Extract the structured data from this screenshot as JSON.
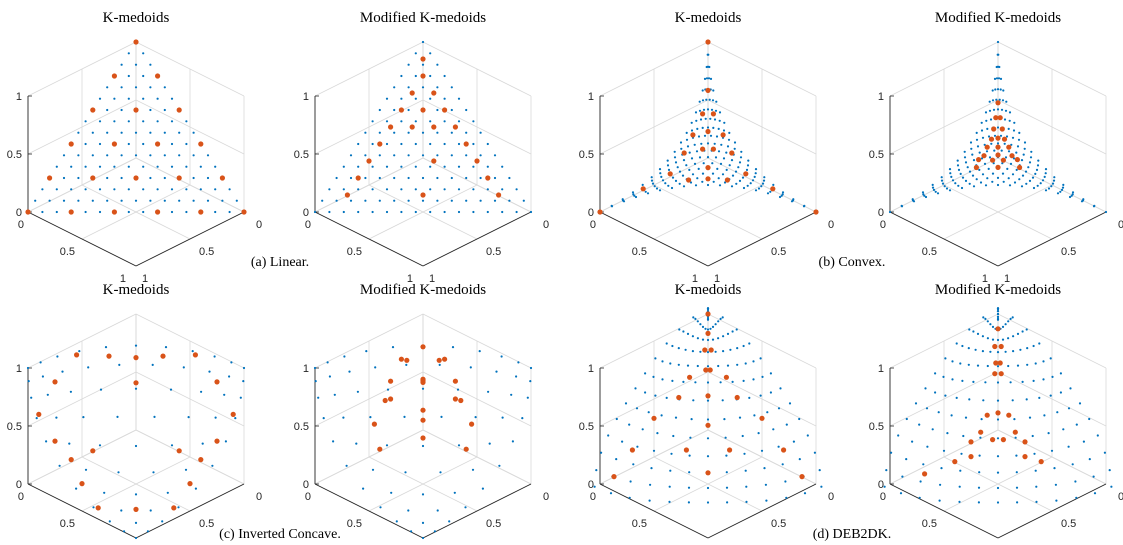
{
  "captions": [
    "(a) Linear.",
    "(b) Convex.",
    "(c) Inverted Concave.",
    "(d) DEB2DK."
  ],
  "colors": {
    "blue_points": "#0072BD",
    "orange_points": "#D95319",
    "axis": "#262626",
    "grid": "#d9d9d9"
  },
  "chart_data": [
    {
      "type": "scatter",
      "subfigure": "(a) Linear.",
      "title": "K-medoids",
      "shape": "linear",
      "z_ticks": [
        "0",
        "0.5",
        "1"
      ],
      "x_ticks": [
        "0",
        "0.5",
        "1"
      ],
      "y_ticks": [
        "1",
        "0.5",
        "0"
      ],
      "xlim": [
        0,
        1
      ],
      "ylim": [
        0,
        1
      ],
      "zlim": [
        0,
        1
      ],
      "grid": true,
      "series": [
        {
          "points": [
            [
              0,
              0,
              1
            ],
            [
              0.2,
              0,
              0.8
            ],
            [
              0,
              0.2,
              0.8
            ],
            [
              0.4,
              0,
              0.6
            ],
            [
              0.2,
              0.2,
              0.6
            ],
            [
              0,
              0.4,
              0.6
            ],
            [
              0.6,
              0,
              0.4
            ],
            [
              0.4,
              0.2,
              0.4
            ],
            [
              0.2,
              0.4,
              0.4
            ],
            [
              0,
              0.6,
              0.4
            ],
            [
              0.8,
              0,
              0.2
            ],
            [
              0.6,
              0.2,
              0.2
            ],
            [
              0.4,
              0.4,
              0.2
            ],
            [
              0.2,
              0.6,
              0.2
            ],
            [
              0,
              0.8,
              0.2
            ],
            [
              1,
              0,
              0
            ],
            [
              0.8,
              0.2,
              0
            ],
            [
              0.6,
              0.4,
              0
            ],
            [
              0.4,
              0.6,
              0
            ],
            [
              0.2,
              0.8,
              0
            ],
            [
              0,
              1,
              0
            ]
          ]
        }
      ]
    },
    {
      "type": "scatter",
      "subfigure": "(a) Linear.",
      "title": "Modified K-medoids",
      "shape": "linear",
      "z_ticks": [
        "0",
        "0.5",
        "1"
      ],
      "x_ticks": [
        "0",
        "0.5",
        "1"
      ],
      "y_ticks": [
        "1",
        "0.5",
        "0"
      ],
      "xlim": [
        0,
        1
      ],
      "ylim": [
        0,
        1
      ],
      "zlim": [
        0,
        1
      ],
      "grid": true,
      "series": [
        {
          "points": [
            [
              0.05,
              0.05,
              0.9
            ],
            [
              0.1,
              0.1,
              0.8
            ],
            [
              0.2,
              0.1,
              0.7
            ],
            [
              0.1,
              0.2,
              0.7
            ],
            [
              0.3,
              0.1,
              0.6
            ],
            [
              0.2,
              0.2,
              0.6
            ],
            [
              0.1,
              0.3,
              0.6
            ],
            [
              0.4,
              0.1,
              0.5
            ],
            [
              0.3,
              0.2,
              0.5
            ],
            [
              0.2,
              0.3,
              0.5
            ],
            [
              0.1,
              0.4,
              0.5
            ],
            [
              0.5,
              0.1,
              0.4
            ],
            [
              0.1,
              0.5,
              0.4
            ],
            [
              0.6,
              0.1,
              0.3
            ],
            [
              0.3,
              0.4,
              0.3
            ],
            [
              0.1,
              0.6,
              0.3
            ],
            [
              0.7,
              0.1,
              0.2
            ],
            [
              0.1,
              0.7,
              0.2
            ],
            [
              0.8,
              0.1,
              0.1
            ],
            [
              0.45,
              0.45,
              0.1
            ],
            [
              0.1,
              0.8,
              0.1
            ]
          ]
        }
      ]
    },
    {
      "type": "scatter",
      "subfigure": "(b) Convex.",
      "title": "K-medoids",
      "shape": "convex",
      "z_ticks": [
        "0",
        "0.5",
        "1"
      ],
      "x_ticks": [
        "0",
        "0.5",
        "1"
      ],
      "y_ticks": [
        "1",
        "0.5",
        "0"
      ],
      "xlim": [
        0,
        1
      ],
      "ylim": [
        0,
        1
      ],
      "zlim": [
        0,
        1
      ],
      "grid": true,
      "series": [
        {
          "points": [
            [
              0,
              0,
              1
            ],
            [
              1,
              0,
              0
            ],
            [
              0,
              1,
              0
            ],
            [
              0.04,
              0.04,
              0.62
            ],
            [
              0.1,
              0.05,
              0.45
            ],
            [
              0.05,
              0.1,
              0.45
            ],
            [
              0.2,
              0.06,
              0.32
            ],
            [
              0.12,
              0.12,
              0.34
            ],
            [
              0.06,
              0.2,
              0.32
            ],
            [
              0.3,
              0.08,
              0.22
            ],
            [
              0.2,
              0.15,
              0.24
            ],
            [
              0.15,
              0.2,
              0.24
            ],
            [
              0.08,
              0.3,
              0.22
            ],
            [
              0.45,
              0.1,
              0.12
            ],
            [
              0.25,
              0.25,
              0.15
            ],
            [
              0.1,
              0.45,
              0.12
            ],
            [
              0.65,
              0.05,
              0.06
            ],
            [
              0.38,
              0.2,
              0.08
            ],
            [
              0.2,
              0.38,
              0.08
            ],
            [
              0.05,
              0.65,
              0.06
            ],
            [
              0.3,
              0.3,
              0.1
            ]
          ]
        }
      ]
    },
    {
      "type": "scatter",
      "subfigure": "(b) Convex.",
      "title": "Modified K-medoids",
      "shape": "convex",
      "z_ticks": [
        "0",
        "0.5",
        "1"
      ],
      "x_ticks": [
        "0",
        "0.5",
        "1"
      ],
      "y_ticks": [
        "1",
        "0.5",
        "0"
      ],
      "xlim": [
        0,
        1
      ],
      "ylim": [
        0,
        1
      ],
      "zlim": [
        0,
        1
      ],
      "grid": true,
      "series": [
        {
          "points": [
            [
              0.08,
              0.08,
              0.55
            ],
            [
              0.12,
              0.1,
              0.45
            ],
            [
              0.1,
              0.12,
              0.45
            ],
            [
              0.16,
              0.12,
              0.38
            ],
            [
              0.12,
              0.16,
              0.38
            ],
            [
              0.2,
              0.14,
              0.32
            ],
            [
              0.14,
              0.2,
              0.32
            ],
            [
              0.17,
              0.17,
              0.33
            ],
            [
              0.24,
              0.14,
              0.27
            ],
            [
              0.14,
              0.24,
              0.27
            ],
            [
              0.2,
              0.2,
              0.28
            ],
            [
              0.28,
              0.15,
              0.22
            ],
            [
              0.15,
              0.28,
              0.22
            ],
            [
              0.23,
              0.23,
              0.24
            ],
            [
              0.32,
              0.14,
              0.2
            ],
            [
              0.14,
              0.32,
              0.2
            ],
            [
              0.26,
              0.21,
              0.2
            ],
            [
              0.21,
              0.26,
              0.2
            ],
            [
              0.36,
              0.16,
              0.16
            ],
            [
              0.16,
              0.36,
              0.16
            ],
            [
              0.28,
              0.28,
              0.18
            ]
          ]
        }
      ]
    },
    {
      "type": "scatter",
      "subfigure": "(c) Inverted Concave.",
      "title": "K-medoids",
      "shape": "inverted_concave",
      "z_ticks": [
        "0",
        "0.5",
        "1"
      ],
      "x_ticks": [
        "0",
        "0.5",
        "1"
      ],
      "y_ticks": [
        "1",
        "0.5",
        "0"
      ],
      "xlim": [
        0,
        1
      ],
      "ylim": [
        0,
        1
      ],
      "zlim": [
        0,
        1
      ],
      "grid": true,
      "series": [
        {
          "points": [
            [
              0.95,
              0.2,
              0.95
            ],
            [
              0.2,
              0.95,
              0.95
            ],
            [
              0.95,
              0.95,
              0.2
            ],
            [
              0.6,
              0.05,
              0.95
            ],
            [
              0.05,
              0.6,
              0.95
            ],
            [
              0.95,
              0.05,
              0.6
            ],
            [
              0.95,
              0.6,
              0.05
            ],
            [
              0.05,
              0.95,
              0.6
            ],
            [
              0.6,
              0.95,
              0.05
            ],
            [
              0.35,
              0.35,
              0.95
            ],
            [
              0.95,
              0.35,
              0.35
            ],
            [
              0.35,
              0.95,
              0.35
            ],
            [
              0.05,
              0.3,
              0.8
            ],
            [
              0.3,
              0.05,
              0.8
            ],
            [
              0.8,
              0.05,
              0.3
            ],
            [
              0.8,
              0.3,
              0.05
            ],
            [
              0.05,
              0.8,
              0.3
            ],
            [
              0.3,
              0.8,
              0.05
            ],
            [
              0.1,
              0.1,
              0.5
            ],
            [
              0.5,
              0.1,
              0.1
            ],
            [
              0.1,
              0.5,
              0.1
            ]
          ]
        }
      ]
    },
    {
      "type": "scatter",
      "subfigure": "(c) Inverted Concave.",
      "title": "Modified K-medoids",
      "shape": "inverted_concave",
      "z_ticks": [
        "0",
        "0.5",
        "1"
      ],
      "x_ticks": [
        "0",
        "0.5",
        "1"
      ],
      "y_ticks": [
        "1",
        "0.5",
        "0"
      ],
      "xlim": [
        0,
        1
      ],
      "ylim": [
        0,
        1
      ],
      "zlim": [
        0,
        1
      ],
      "grid": true,
      "series": [
        {
          "points": [
            [
              0.25,
              0.25,
              0.95
            ],
            [
              0.45,
              0.3,
              0.95
            ],
            [
              0.3,
              0.45,
              0.95
            ],
            [
              0.55,
              0.55,
              0.95
            ],
            [
              0.25,
              0.05,
              0.75
            ],
            [
              0.05,
              0.25,
              0.75
            ],
            [
              0.45,
              0.15,
              0.7
            ],
            [
              0.15,
              0.45,
              0.7
            ],
            [
              0.35,
              0.35,
              0.75
            ],
            [
              0.6,
              0.25,
              0.65
            ],
            [
              0.25,
              0.6,
              0.65
            ],
            [
              0.15,
              0.15,
              0.55
            ],
            [
              0.4,
              0.1,
              0.5
            ],
            [
              0.1,
              0.4,
              0.5
            ],
            [
              0.5,
              0.5,
              0.55
            ],
            [
              0.3,
              0.3,
              0.45
            ],
            [
              0.6,
              0.15,
              0.4
            ],
            [
              0.15,
              0.6,
              0.4
            ],
            [
              0.45,
              0.45,
              0.35
            ],
            [
              0.7,
              0.3,
              0.3
            ],
            [
              0.3,
              0.7,
              0.3
            ]
          ]
        }
      ]
    },
    {
      "type": "scatter",
      "subfigure": "(d) DEB2DK.",
      "title": "K-medoids",
      "shape": "deb2dk",
      "z_ticks": [
        "0",
        "0.5",
        "1"
      ],
      "x_ticks": [
        "0",
        "0.5",
        "1"
      ],
      "y_ticks": [
        "1",
        "0.5",
        "0"
      ],
      "xlim": [
        0,
        1
      ],
      "ylim": [
        0,
        1
      ],
      "zlim": [
        0,
        1
      ],
      "grid": true,
      "series": [
        {
          "points": [
            [
              0,
              0,
              1
            ],
            [
              0.04,
              0.04,
              0.87
            ],
            [
              0.05,
              0.08,
              0.75
            ],
            [
              0.08,
              0.05,
              0.75
            ],
            [
              0.1,
              0.12,
              0.62
            ],
            [
              0.12,
              0.1,
              0.62
            ],
            [
              0.22,
              0.05,
              0.58
            ],
            [
              0.05,
              0.22,
              0.58
            ],
            [
              0.2,
              0.2,
              0.48
            ],
            [
              0.35,
              0.08,
              0.48
            ],
            [
              0.08,
              0.35,
              0.48
            ],
            [
              0.3,
              0.3,
              0.32
            ],
            [
              0.55,
              0.05,
              0.38
            ],
            [
              0.05,
              0.55,
              0.38
            ],
            [
              0.5,
              0.3,
              0.2
            ],
            [
              0.3,
              0.5,
              0.2
            ],
            [
              0.75,
              0.05,
              0.2
            ],
            [
              0.05,
              0.75,
              0.2
            ],
            [
              0.92,
              0.05,
              0.05
            ],
            [
              0.05,
              0.92,
              0.05
            ],
            [
              0.45,
              0.45,
              0.05
            ]
          ]
        }
      ]
    },
    {
      "type": "scatter",
      "subfigure": "(d) DEB2DK.",
      "title": "Modified K-medoids",
      "shape": "deb2dk",
      "z_ticks": [
        "0",
        "0.5",
        "1"
      ],
      "x_ticks": [
        "0",
        "0.5",
        "1"
      ],
      "y_ticks": [
        "1",
        "0.5",
        "0"
      ],
      "xlim": [
        0,
        1
      ],
      "ylim": [
        0,
        1
      ],
      "zlim": [
        0,
        1
      ],
      "grid": true,
      "series": [
        {
          "points": [
            [
              0.03,
              0.03,
              0.9
            ],
            [
              0.05,
              0.08,
              0.78
            ],
            [
              0.08,
              0.05,
              0.78
            ],
            [
              0.1,
              0.12,
              0.68
            ],
            [
              0.12,
              0.1,
              0.68
            ],
            [
              0.13,
              0.16,
              0.62
            ],
            [
              0.16,
              0.13,
              0.62
            ],
            [
              0.25,
              0.25,
              0.38
            ],
            [
              0.3,
              0.2,
              0.36
            ],
            [
              0.2,
              0.3,
              0.36
            ],
            [
              0.38,
              0.22,
              0.26
            ],
            [
              0.22,
              0.38,
              0.26
            ],
            [
              0.45,
              0.2,
              0.2
            ],
            [
              0.2,
              0.45,
              0.2
            ],
            [
              0.35,
              0.3,
              0.22
            ],
            [
              0.3,
              0.35,
              0.22
            ],
            [
              0.5,
              0.25,
              0.12
            ],
            [
              0.25,
              0.5,
              0.12
            ],
            [
              0.6,
              0.2,
              0.1
            ],
            [
              0.2,
              0.6,
              0.1
            ],
            [
              0.8,
              0.12,
              0.05
            ]
          ]
        }
      ]
    }
  ]
}
